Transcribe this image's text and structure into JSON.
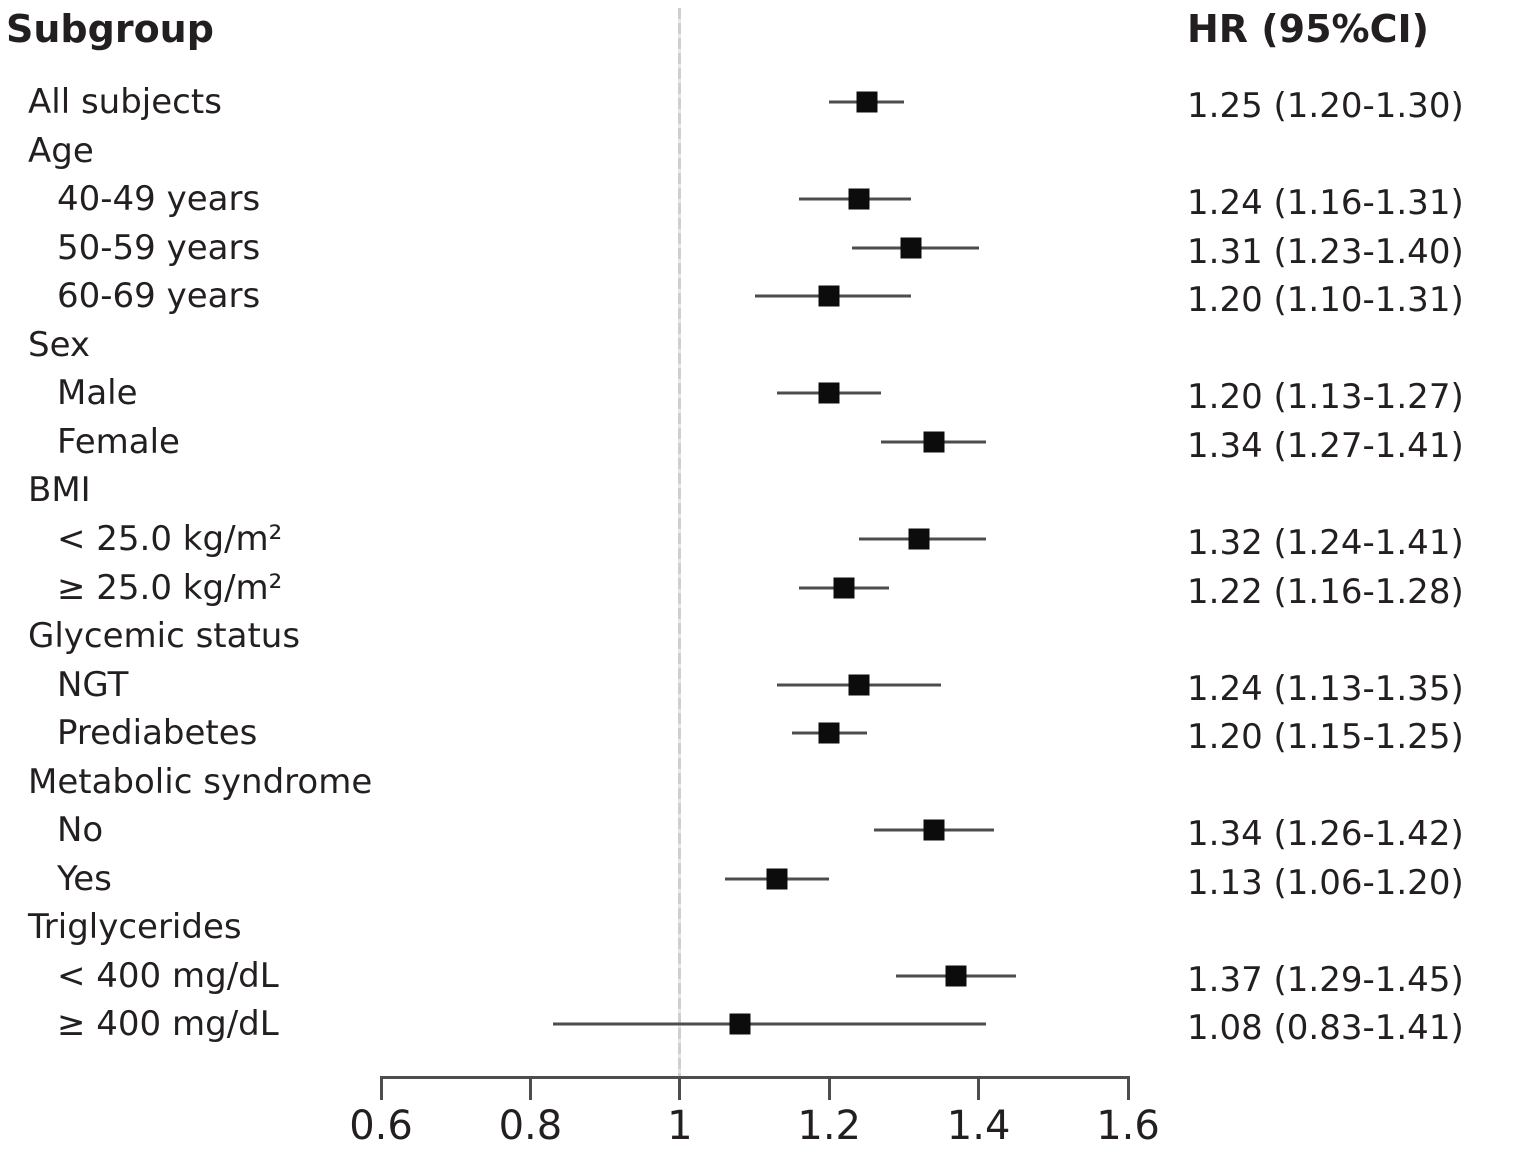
{
  "columns": {
    "subgroup_header": "Subgroup",
    "hr_header": "HR (95%CI)"
  },
  "chart_data": {
    "type": "forest",
    "title": "",
    "xlabel": "",
    "x_axis": {
      "scale": "linear",
      "range": [
        0.6,
        1.6
      ],
      "ticks": [
        0.6,
        0.8,
        1.0,
        1.2,
        1.4,
        1.6
      ],
      "tick_labels": [
        "0.6",
        "0.8",
        "1",
        "1.2",
        "1.4",
        "1.6"
      ],
      "reference_line": 1.0
    },
    "rows": [
      {
        "label": "All subjects",
        "indent": 1,
        "hr": 1.25,
        "ci_low": 1.2,
        "ci_high": 1.3,
        "hr_text": "1.25 (1.20-1.30)"
      },
      {
        "label": "Age",
        "indent": 1
      },
      {
        "label": "40-49 years",
        "indent": 2,
        "hr": 1.24,
        "ci_low": 1.16,
        "ci_high": 1.31,
        "hr_text": "1.24 (1.16-1.31)"
      },
      {
        "label": "50-59 years",
        "indent": 2,
        "hr": 1.31,
        "ci_low": 1.23,
        "ci_high": 1.4,
        "hr_text": "1.31 (1.23-1.40)"
      },
      {
        "label": "60-69 years",
        "indent": 2,
        "hr": 1.2,
        "ci_low": 1.1,
        "ci_high": 1.31,
        "hr_text": "1.20 (1.10-1.31)"
      },
      {
        "label": "Sex",
        "indent": 1
      },
      {
        "label": "Male",
        "indent": 2,
        "hr": 1.2,
        "ci_low": 1.13,
        "ci_high": 1.27,
        "hr_text": "1.20 (1.13-1.27)"
      },
      {
        "label": "Female",
        "indent": 2,
        "hr": 1.34,
        "ci_low": 1.27,
        "ci_high": 1.41,
        "hr_text": "1.34 (1.27-1.41)"
      },
      {
        "label": "BMI",
        "indent": 1
      },
      {
        "label": "< 25.0 kg/m²",
        "indent": 2,
        "hr": 1.32,
        "ci_low": 1.24,
        "ci_high": 1.41,
        "hr_text": "1.32 (1.24-1.41)"
      },
      {
        "label": "≥ 25.0 kg/m²",
        "indent": 2,
        "hr": 1.22,
        "ci_low": 1.16,
        "ci_high": 1.28,
        "hr_text": "1.22 (1.16-1.28)"
      },
      {
        "label": "Glycemic status",
        "indent": 1
      },
      {
        "label": "NGT",
        "indent": 2,
        "hr": 1.24,
        "ci_low": 1.13,
        "ci_high": 1.35,
        "hr_text": "1.24 (1.13-1.35)"
      },
      {
        "label": "Prediabetes",
        "indent": 2,
        "hr": 1.2,
        "ci_low": 1.15,
        "ci_high": 1.25,
        "hr_text": "1.20 (1.15-1.25)"
      },
      {
        "label": "Metabolic syndrome",
        "indent": 1
      },
      {
        "label": "No",
        "indent": 2,
        "hr": 1.34,
        "ci_low": 1.26,
        "ci_high": 1.42,
        "hr_text": "1.34 (1.26-1.42)"
      },
      {
        "label": "Yes",
        "indent": 2,
        "hr": 1.13,
        "ci_low": 1.06,
        "ci_high": 1.2,
        "hr_text": "1.13 (1.06-1.20)"
      },
      {
        "label": "Triglycerides",
        "indent": 1
      },
      {
        "label": "< 400 mg/dL",
        "indent": 2,
        "hr": 1.37,
        "ci_low": 1.29,
        "ci_high": 1.45,
        "hr_text": "1.37 (1.29-1.45)"
      },
      {
        "label": "≥ 400 mg/dL",
        "indent": 2,
        "hr": 1.08,
        "ci_low": 0.83,
        "ci_high": 1.41,
        "hr_text": "1.08 (0.83-1.41)"
      }
    ],
    "colors": {
      "text": "#231f20",
      "marker": "#0c0c0c",
      "ci_line": "#4d4d4d",
      "axis": "#4d4d4d",
      "reference_line": "#cfcfcf",
      "background": "#ffffff"
    },
    "legend": null,
    "grid": false
  }
}
